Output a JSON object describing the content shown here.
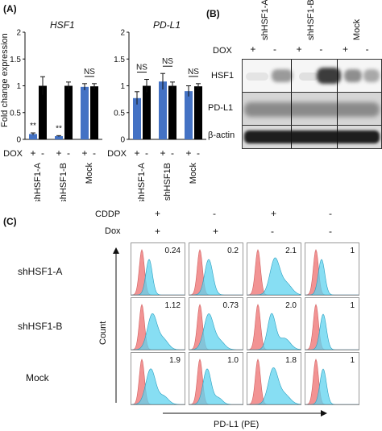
{
  "panel_a": {
    "label": "(A)",
    "ylabel": "Fold change expression",
    "charts": [
      {
        "title": "HSF1",
        "ytick_labels": [
          "0",
          "0.5",
          "1",
          "1.5",
          "2"
        ],
        "dox_label": "DOX",
        "dox_marks": [
          "+",
          "-",
          "+",
          "-",
          "+",
          "-"
        ],
        "group_labels": [
          "shHSF1-A",
          "shHSF1-B",
          "Mock"
        ],
        "annotations": [
          "**",
          "**",
          "NS"
        ]
      },
      {
        "title": "PD-L1",
        "ytick_labels": [
          "0",
          "0.5",
          "1",
          "1.5",
          "2"
        ],
        "dox_label": "DOX",
        "dox_marks": [
          "+",
          "-",
          "+",
          "-",
          "+",
          "-"
        ],
        "group_labels": [
          "shHSF1-A",
          "shHSF1B",
          "Mock"
        ],
        "annotations": [
          "NS",
          "NS",
          "NS"
        ]
      }
    ]
  },
  "chart_data": [
    {
      "type": "bar",
      "title": "HSF1",
      "ylabel": "Fold change expression",
      "ylim": [
        0,
        2
      ],
      "categories": [
        "shHSF1-A +",
        "shHSF1-A -",
        "shHSF1-B +",
        "shHSF1-B -",
        "Mock +",
        "Mock -"
      ],
      "values": [
        0.1,
        1.0,
        0.06,
        1.0,
        0.98,
        0.99
      ],
      "errors": [
        0.02,
        0.17,
        0.01,
        0.07,
        0.06,
        0.05
      ],
      "colors": [
        "#4472c4",
        "#000000",
        "#4472c4",
        "#000000",
        "#4472c4",
        "#000000"
      ]
    },
    {
      "type": "bar",
      "title": "PD-L1",
      "ylim": [
        0,
        2
      ],
      "categories": [
        "shHSF1-A +",
        "shHSF1-A -",
        "shHSF1B +",
        "shHSF1B -",
        "Mock +",
        "Mock -"
      ],
      "values": [
        0.77,
        1.0,
        1.08,
        1.0,
        0.9,
        0.99
      ],
      "errors": [
        0.12,
        0.12,
        0.15,
        0.07,
        0.1,
        0.05
      ],
      "colors": [
        "#4472c4",
        "#000000",
        "#4472c4",
        "#000000",
        "#4472c4",
        "#000000"
      ]
    }
  ],
  "panel_b": {
    "label": "(B)",
    "group_labels": [
      "shHSF1-A",
      "shHSF1-B",
      "Mock"
    ],
    "dox_label": "DOX",
    "dox_marks": [
      "+",
      "-",
      "+",
      "-",
      "+",
      "-"
    ],
    "row_labels": [
      "HSF1",
      "PD-L1",
      "β-actin"
    ]
  },
  "panel_c": {
    "label": "(C)",
    "cddp_label": "CDDP",
    "dox_label": "Dox",
    "cddp_marks": [
      "+",
      "-",
      "+",
      "-"
    ],
    "dox_marks": [
      "+",
      "+",
      "-",
      "-"
    ],
    "row_labels": [
      "shHSF1-A",
      "shHSF1-B",
      "Mock"
    ],
    "values": [
      [
        "0.24",
        "0.2",
        "2.1",
        "1"
      ],
      [
        "1.12",
        "0.73",
        "2.0",
        "1"
      ],
      [
        "1.9",
        "1.0",
        "1.8",
        "1"
      ]
    ],
    "yaxis_label": "Count",
    "xaxis_label": "PD-L1 (PE)",
    "colors": {
      "control": "#f08080",
      "sample": "#5fd3ef"
    }
  }
}
